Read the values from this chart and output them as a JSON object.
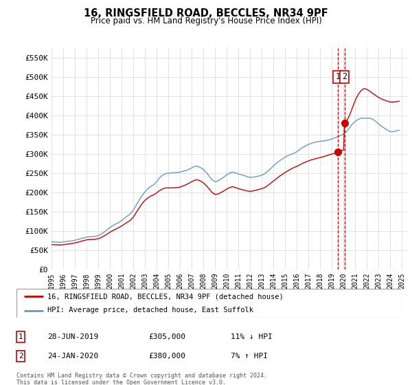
{
  "title": "16, RINGSFIELD ROAD, BECCLES, NR34 9PF",
  "subtitle": "Price paid vs. HM Land Registry's House Price Index (HPI)",
  "ylabel_ticks": [
    "£0",
    "£50K",
    "£100K",
    "£150K",
    "£200K",
    "£250K",
    "£300K",
    "£350K",
    "£400K",
    "£450K",
    "£500K",
    "£550K"
  ],
  "ytick_values": [
    0,
    50000,
    100000,
    150000,
    200000,
    250000,
    300000,
    350000,
    400000,
    450000,
    500000,
    550000
  ],
  "ylim": [
    0,
    575000
  ],
  "xlim_start": 1995.0,
  "xlim_end": 2025.5,
  "hpi_color": "#6699cc",
  "price_color": "#cc0000",
  "transaction_color": "#cc0000",
  "transaction1": {
    "date_num": 2019.49,
    "price": 305000,
    "label": "1",
    "date_str": "28-JUN-2019",
    "change": "11% ↓ HPI"
  },
  "transaction2": {
    "date_num": 2020.07,
    "price": 380000,
    "label": "2",
    "date_str": "24-JAN-2020",
    "change": "7% ↑ HPI"
  },
  "legend_line1": "16, RINGSFIELD ROAD, BECCLES, NR34 9PF (detached house)",
  "legend_line2": "HPI: Average price, detached house, East Suffolk",
  "footer": "Contains HM Land Registry data © Crown copyright and database right 2024.\nThis data is licensed under the Open Government Licence v3.0.",
  "background_color": "#ffffff",
  "grid_color": "#dddddd",
  "hpi_data": [
    [
      1995.0,
      72000
    ],
    [
      1995.25,
      71500
    ],
    [
      1995.5,
      71000
    ],
    [
      1995.75,
      70800
    ],
    [
      1996.0,
      71500
    ],
    [
      1996.25,
      72500
    ],
    [
      1996.5,
      73500
    ],
    [
      1996.75,
      74500
    ],
    [
      1997.0,
      76000
    ],
    [
      1997.25,
      78000
    ],
    [
      1997.5,
      80000
    ],
    [
      1997.75,
      82000
    ],
    [
      1998.0,
      84000
    ],
    [
      1998.25,
      85000
    ],
    [
      1998.5,
      85500
    ],
    [
      1998.75,
      86000
    ],
    [
      1999.0,
      88000
    ],
    [
      1999.25,
      92000
    ],
    [
      1999.5,
      97000
    ],
    [
      1999.75,
      103000
    ],
    [
      2000.0,
      109000
    ],
    [
      2000.25,
      114000
    ],
    [
      2000.5,
      118000
    ],
    [
      2000.75,
      122000
    ],
    [
      2001.0,
      127000
    ],
    [
      2001.25,
      133000
    ],
    [
      2001.5,
      139000
    ],
    [
      2001.75,
      145000
    ],
    [
      2002.0,
      154000
    ],
    [
      2002.25,
      167000
    ],
    [
      2002.5,
      180000
    ],
    [
      2002.75,
      192000
    ],
    [
      2003.0,
      202000
    ],
    [
      2003.25,
      210000
    ],
    [
      2003.5,
      216000
    ],
    [
      2003.75,
      220000
    ],
    [
      2004.0,
      228000
    ],
    [
      2004.25,
      238000
    ],
    [
      2004.5,
      245000
    ],
    [
      2004.75,
      249000
    ],
    [
      2005.0,
      250000
    ],
    [
      2005.25,
      251000
    ],
    [
      2005.5,
      251500
    ],
    [
      2005.75,
      252000
    ],
    [
      2006.0,
      253000
    ],
    [
      2006.25,
      255000
    ],
    [
      2006.5,
      257000
    ],
    [
      2006.75,
      260000
    ],
    [
      2007.0,
      264000
    ],
    [
      2007.25,
      268000
    ],
    [
      2007.5,
      268000
    ],
    [
      2007.75,
      265000
    ],
    [
      2008.0,
      260000
    ],
    [
      2008.25,
      252000
    ],
    [
      2008.5,
      242000
    ],
    [
      2008.75,
      233000
    ],
    [
      2009.0,
      228000
    ],
    [
      2009.25,
      230000
    ],
    [
      2009.5,
      235000
    ],
    [
      2009.75,
      240000
    ],
    [
      2010.0,
      246000
    ],
    [
      2010.25,
      251000
    ],
    [
      2010.5,
      253000
    ],
    [
      2010.75,
      251000
    ],
    [
      2011.0,
      248000
    ],
    [
      2011.25,
      246000
    ],
    [
      2011.5,
      244000
    ],
    [
      2011.75,
      241000
    ],
    [
      2012.0,
      239000
    ],
    [
      2012.25,
      240000
    ],
    [
      2012.5,
      241000
    ],
    [
      2012.75,
      243000
    ],
    [
      2013.0,
      245000
    ],
    [
      2013.25,
      249000
    ],
    [
      2013.5,
      255000
    ],
    [
      2013.75,
      262000
    ],
    [
      2014.0,
      269000
    ],
    [
      2014.25,
      276000
    ],
    [
      2014.5,
      282000
    ],
    [
      2014.75,
      287000
    ],
    [
      2015.0,
      292000
    ],
    [
      2015.25,
      296000
    ],
    [
      2015.5,
      299000
    ],
    [
      2015.75,
      302000
    ],
    [
      2016.0,
      306000
    ],
    [
      2016.25,
      312000
    ],
    [
      2016.5,
      317000
    ],
    [
      2016.75,
      321000
    ],
    [
      2017.0,
      325000
    ],
    [
      2017.25,
      328000
    ],
    [
      2017.5,
      330000
    ],
    [
      2017.75,
      332000
    ],
    [
      2018.0,
      333000
    ],
    [
      2018.25,
      334000
    ],
    [
      2018.5,
      335000
    ],
    [
      2018.75,
      337000
    ],
    [
      2019.0,
      339000
    ],
    [
      2019.25,
      342000
    ],
    [
      2019.5,
      345000
    ],
    [
      2019.75,
      348000
    ],
    [
      2020.0,
      352000
    ],
    [
      2020.25,
      358000
    ],
    [
      2020.5,
      368000
    ],
    [
      2020.75,
      378000
    ],
    [
      2021.0,
      385000
    ],
    [
      2021.25,
      390000
    ],
    [
      2021.5,
      393000
    ],
    [
      2021.75,
      393000
    ],
    [
      2022.0,
      393000
    ],
    [
      2022.25,
      393000
    ],
    [
      2022.5,
      390000
    ],
    [
      2022.75,
      385000
    ],
    [
      2023.0,
      378000
    ],
    [
      2023.25,
      372000
    ],
    [
      2023.5,
      367000
    ],
    [
      2023.75,
      362000
    ],
    [
      2024.0,
      358000
    ],
    [
      2024.25,
      358000
    ],
    [
      2024.5,
      360000
    ],
    [
      2024.75,
      362000
    ]
  ],
  "price_data": [
    [
      1995.0,
      65000
    ],
    [
      1995.25,
      64500
    ],
    [
      1995.5,
      64000
    ],
    [
      1995.75,
      63800
    ],
    [
      1996.0,
      64500
    ],
    [
      1996.25,
      65500
    ],
    [
      1996.5,
      66500
    ],
    [
      1996.75,
      67500
    ],
    [
      1997.0,
      69000
    ],
    [
      1997.25,
      71000
    ],
    [
      1997.5,
      73000
    ],
    [
      1997.75,
      75000
    ],
    [
      1998.0,
      77000
    ],
    [
      1998.25,
      78000
    ],
    [
      1998.5,
      78000
    ],
    [
      1998.75,
      78500
    ],
    [
      1999.0,
      80000
    ],
    [
      1999.25,
      83000
    ],
    [
      1999.5,
      87000
    ],
    [
      1999.75,
      92000
    ],
    [
      2000.0,
      97000
    ],
    [
      2000.25,
      101000
    ],
    [
      2000.5,
      105000
    ],
    [
      2000.75,
      109000
    ],
    [
      2001.0,
      113000
    ],
    [
      2001.25,
      118000
    ],
    [
      2001.5,
      123000
    ],
    [
      2001.75,
      128000
    ],
    [
      2002.0,
      136000
    ],
    [
      2002.25,
      148000
    ],
    [
      2002.5,
      160000
    ],
    [
      2002.75,
      171000
    ],
    [
      2003.0,
      180000
    ],
    [
      2003.25,
      186000
    ],
    [
      2003.5,
      191000
    ],
    [
      2003.75,
      194000
    ],
    [
      2004.0,
      199000
    ],
    [
      2004.25,
      205000
    ],
    [
      2004.5,
      209000
    ],
    [
      2004.75,
      212000
    ],
    [
      2005.0,
      212000
    ],
    [
      2005.25,
      212000
    ],
    [
      2005.5,
      212500
    ],
    [
      2005.75,
      213000
    ],
    [
      2006.0,
      214000
    ],
    [
      2006.25,
      217000
    ],
    [
      2006.5,
      220000
    ],
    [
      2006.75,
      224000
    ],
    [
      2007.0,
      228000
    ],
    [
      2007.25,
      232000
    ],
    [
      2007.5,
      233000
    ],
    [
      2007.75,
      230000
    ],
    [
      2008.0,
      225000
    ],
    [
      2008.25,
      218000
    ],
    [
      2008.5,
      209000
    ],
    [
      2008.75,
      200000
    ],
    [
      2009.0,
      195000
    ],
    [
      2009.25,
      196000
    ],
    [
      2009.5,
      200000
    ],
    [
      2009.75,
      204000
    ],
    [
      2010.0,
      209000
    ],
    [
      2010.25,
      213000
    ],
    [
      2010.5,
      215000
    ],
    [
      2010.75,
      213000
    ],
    [
      2011.0,
      210000
    ],
    [
      2011.25,
      208000
    ],
    [
      2011.5,
      206000
    ],
    [
      2011.75,
      204000
    ],
    [
      2012.0,
      203000
    ],
    [
      2012.25,
      204000
    ],
    [
      2012.5,
      206000
    ],
    [
      2012.75,
      208000
    ],
    [
      2013.0,
      210000
    ],
    [
      2013.25,
      213000
    ],
    [
      2013.5,
      218000
    ],
    [
      2013.75,
      224000
    ],
    [
      2014.0,
      230000
    ],
    [
      2014.25,
      236000
    ],
    [
      2014.5,
      242000
    ],
    [
      2014.75,
      247000
    ],
    [
      2015.0,
      252000
    ],
    [
      2015.25,
      257000
    ],
    [
      2015.5,
      261000
    ],
    [
      2015.75,
      265000
    ],
    [
      2016.0,
      268000
    ],
    [
      2016.25,
      272000
    ],
    [
      2016.5,
      276000
    ],
    [
      2016.75,
      279000
    ],
    [
      2017.0,
      282000
    ],
    [
      2017.25,
      285000
    ],
    [
      2017.5,
      287000
    ],
    [
      2017.75,
      289000
    ],
    [
      2018.0,
      291000
    ],
    [
      2018.25,
      293000
    ],
    [
      2018.5,
      295000
    ],
    [
      2018.75,
      298000
    ],
    [
      2019.0,
      300000
    ],
    [
      2019.25,
      302000
    ],
    [
      2019.49,
      305000
    ],
    [
      2019.75,
      308000
    ],
    [
      2020.0,
      311000
    ],
    [
      2020.07,
      380000
    ],
    [
      2020.25,
      385000
    ],
    [
      2020.5,
      400000
    ],
    [
      2020.75,
      420000
    ],
    [
      2021.0,
      440000
    ],
    [
      2021.25,
      455000
    ],
    [
      2021.5,
      465000
    ],
    [
      2021.75,
      470000
    ],
    [
      2022.0,
      468000
    ],
    [
      2022.25,
      463000
    ],
    [
      2022.5,
      457000
    ],
    [
      2022.75,
      452000
    ],
    [
      2023.0,
      447000
    ],
    [
      2023.25,
      443000
    ],
    [
      2023.5,
      440000
    ],
    [
      2023.75,
      437000
    ],
    [
      2024.0,
      435000
    ],
    [
      2024.25,
      435000
    ],
    [
      2024.5,
      436000
    ],
    [
      2024.75,
      437000
    ]
  ]
}
